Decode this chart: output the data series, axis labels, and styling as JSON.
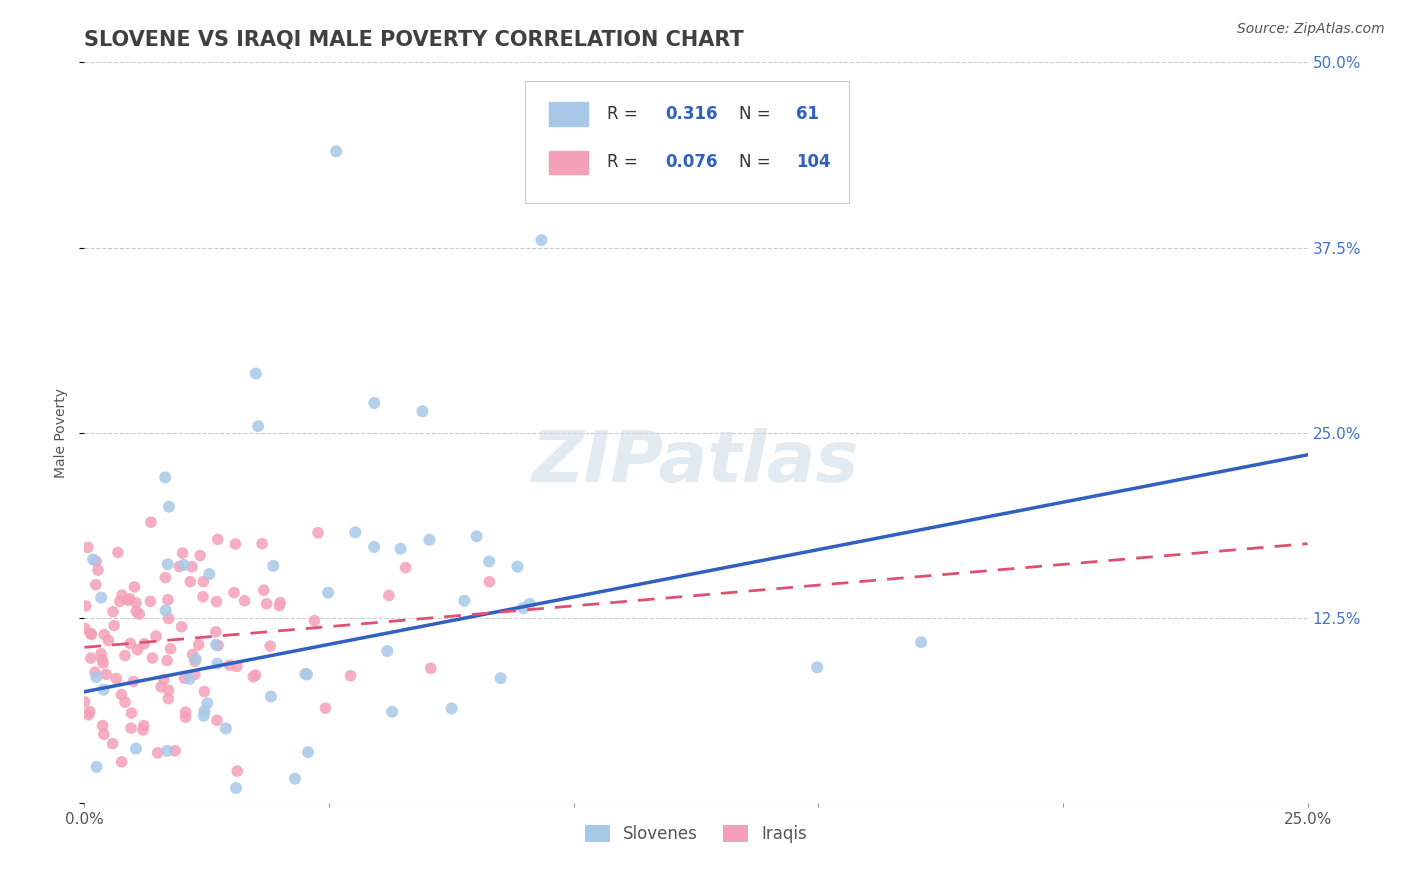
{
  "title": "SLOVENE VS IRAQI MALE POVERTY CORRELATION CHART",
  "source": "Source: ZipAtlas.com",
  "ylabel": "Male Poverty",
  "xlim": [
    0.0,
    0.25
  ],
  "ylim": [
    0.0,
    0.5
  ],
  "xticks": [
    0.0,
    0.05,
    0.1,
    0.15,
    0.2,
    0.25
  ],
  "xtick_labels": [
    "0.0%",
    "",
    "",
    "",
    "",
    "25.0%"
  ],
  "yticks": [
    0.0,
    0.125,
    0.25,
    0.375,
    0.5
  ],
  "ytick_labels_right": [
    "",
    "12.5%",
    "25.0%",
    "37.5%",
    "50.0%"
  ],
  "slovene_color": "#a8c8e8",
  "iraqi_color": "#f4a0b8",
  "slovene_line_color": "#3060c0",
  "iraqi_line_color": "#e05070",
  "R_slovene": 0.316,
  "N_slovene": 61,
  "R_iraqi": 0.076,
  "N_iraqi": 104,
  "background_color": "#ffffff",
  "grid_color": "#cccccc",
  "title_color": "#404040",
  "legend_box_color": "#e8e8e8",
  "legend_value_color": "#3060c0",
  "title_fontsize": 15,
  "axis_label_fontsize": 10,
  "tick_fontsize": 11,
  "legend_fontsize": 12,
  "source_fontsize": 10,
  "slovene_line_start_y": 0.075,
  "slovene_line_end_y": 0.235,
  "iraqi_line_start_y": 0.105,
  "iraqi_line_end_y": 0.175
}
